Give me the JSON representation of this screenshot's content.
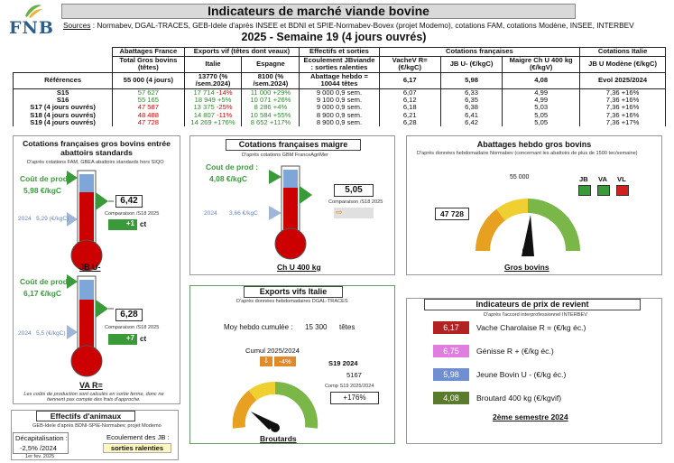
{
  "header": {
    "logo_text": "FNB",
    "title": "Indicateurs de marché viande bovine",
    "sources_label": "Sources",
    "sources_text": " : Normabev, DGAL-TRACES, GEB-Idele d'après INSEE et BDNI et SPIE-Normabev-Bovex (projet Modemo), cotations FAM, cotations Modène, INSEE, INTERBEV",
    "subtitle": "2025 - Semaine 19 (4 jours ouvrés)"
  },
  "table": {
    "group_headers": [
      "Abattages France",
      "Exports vif (têtes dont veaux)",
      "Effectifs et sorties",
      "Cotations françaises",
      "Cotations Italie"
    ],
    "col_headers": [
      "Total Gros bovins (têtes)",
      "Italie",
      "Espagne",
      "Ecoulement JBviande : sorties ralenties",
      "VacheV R= (€/kgC)",
      "JB U- (€/kgC)",
      "Maigre Ch U 400 kg (€/kgV)",
      "JB U Modène (€/kgC)"
    ],
    "ref_label": "Références",
    "ref_values": [
      "55 000 (4 jours)",
      "13770 (% /sem.2024)",
      "8100 (% /sem.2024)",
      "Abattage hebdo = 10044 têtes",
      "6,17",
      "5,98",
      "4,08",
      "Evol 2025/2024"
    ],
    "rows": [
      {
        "label": "S15",
        "abatt": "57 627",
        "it": "17 714",
        "itp": "-14%",
        "es": "11 000",
        "esp": "+29%",
        "eff": "9 000",
        "effs": "0,9 sem.",
        "vv": "6,07",
        "jb": "6,33",
        "mg": "4,99",
        "jbm": "7,36",
        "ev": "+16%"
      },
      {
        "label": "S16",
        "abatt": "55 165",
        "it": "18 949",
        "itp": "+5%",
        "es": "10 071",
        "esp": "+26%",
        "eff": "9 100",
        "effs": "0,9 sem.",
        "vv": "6,12",
        "jb": "6,35",
        "mg": "4,99",
        "jbm": "7,36",
        "ev": "+16%"
      },
      {
        "label": "S17 (4 jours ouvrés)",
        "abatt": "47 587",
        "it": "13 375",
        "itp": "-25%",
        "es": "8 286",
        "esp": "+4%",
        "eff": "9 000",
        "effs": "0,9 sem.",
        "vv": "6,18",
        "jb": "6,38",
        "mg": "5,03",
        "jbm": "7,36",
        "ev": "+16%"
      },
      {
        "label": "S18 (4 jours ouvrés)",
        "abatt": "48 488",
        "it": "14 807",
        "itp": "-11%",
        "es": "10 584",
        "esp": "+55%",
        "eff": "8 900",
        "effs": "0,9 sem.",
        "vv": "6,21",
        "jb": "6,41",
        "mg": "5,05",
        "jbm": "7,36",
        "ev": "+16%"
      },
      {
        "label": "S19 (4 jours ouvrés)",
        "abatt": "47 728",
        "it": "14 269",
        "itp": "+176%",
        "es": "8 652",
        "esp": "+117%",
        "eff": "8 900",
        "effs": "0,9 sem.",
        "vv": "6,28",
        "jb": "6,42",
        "mg": "5,05",
        "jbm": "7,36",
        "ev": "+17%"
      }
    ]
  },
  "panel_gros": {
    "title": "Cotations françaises gros bovins entrée abattoirs standards",
    "source": "D'après cotations FAM, GBEA abattoirs standards hors SIQO",
    "jb_cost_label": "Coût de prod :",
    "jb_cost": "5,98 €/kgC",
    "jb_2024_label": "2024",
    "jb_2024": "5,29 (€/kgC)",
    "jb_value": "6,42",
    "jb_comp": "Comparaison /S18 2025",
    "jb_delta": "+1",
    "jb_delta_unit": "ct",
    "jb_name": "JB U-",
    "va_cost_label": "Coût de prod :",
    "va_cost": "6,17 €/kgC",
    "va_2024_label": "2024",
    "va_2024": "5,5 (€/kgC)",
    "va_value": "6,28",
    "va_comp": "Comparaison /S18 2025",
    "va_delta": "+7",
    "va_delta_unit": "ct",
    "va_name": "VA R=",
    "footnote": "Les coûts de production sont calculés en sortie ferme, donc ne tiennent pas compte des frais d'approche."
  },
  "panel_maigre": {
    "title": "Cotations françaises maigre",
    "source": "D'après cotations GBM FranceAgriMer",
    "cost_label": "Cout de prod :",
    "cost": "4,08 €/kgC",
    "y2024_label": "2024",
    "y2024": "3,66 €/kgC",
    "value": "5,05",
    "comp": "Comparaison /S18 2025",
    "name": "Ch U 400 kg"
  },
  "panel_abattages": {
    "title": "Abattages hebdo gros bovins",
    "source": "D'après données hebdomadaire Normabev (concernant les abattoirs de plus de 1500 tec/semaine)",
    "target": "55 000",
    "value": "47 728",
    "name": "Gros bovins",
    "flags": [
      {
        "label": "JB",
        "color": "#3a9a3a"
      },
      {
        "label": "VA",
        "color": "#3a9a3a"
      },
      {
        "label": "VL",
        "color": "#d02020"
      }
    ]
  },
  "panel_exports": {
    "title": "Exports vifs  Italie",
    "source": "D'après données hebdomadaires DGAL-TRACES",
    "cumul_label": "Moy hebdo cumulée :",
    "cumul_value": "15 300",
    "cumul_unit": "têtes",
    "cumul_title": "Cumul 2025/2024",
    "cumul_pct": "-4%",
    "week_label": "S19 2024",
    "week_value": "5167",
    "comp_label": "Comp S19 2025/2024",
    "comp_value": "+176%",
    "name": "Broutards"
  },
  "panel_effectifs": {
    "title": "Effectifs d'animaux",
    "source": "GEB-Idele d'après BDNI-SPIE-Normabev, projet Modemo",
    "decap_label": "Décapitalisation :",
    "decap_value": "-2,5% /2024",
    "decap_date": "1er fev. 2025",
    "ecoul_label": "Ecoulement des JB :",
    "ecoul_value": "sorties ralenties"
  },
  "panel_prix": {
    "title": "Indicateurs de prix de revient",
    "source": "D'après l'accord interprofessionnel INTERBEV",
    "rows": [
      {
        "value": "6,17",
        "label": "Vache Charolaise R = (€/kg éc.)",
        "color": "#b22222"
      },
      {
        "value": "6,75",
        "label": "Génisse R + (€/kg éc.)",
        "color": "#e07ee0"
      },
      {
        "value": "5,98",
        "label": "Jeune Bovin U - (€/kg éc.)",
        "color": "#6f8fd0"
      },
      {
        "value": "4,08",
        "label": "Broutard 400 kg (€/kgvif)",
        "color": "#5a7a2e"
      }
    ],
    "period": "2ème semestre 2024"
  }
}
